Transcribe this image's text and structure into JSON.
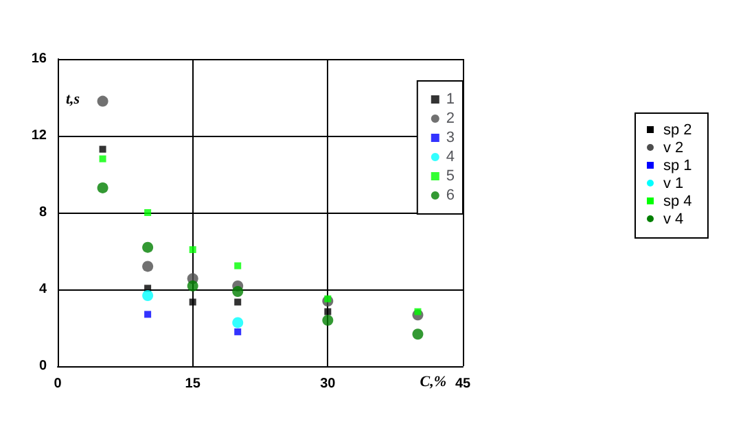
{
  "chart_data": {
    "type": "scatter",
    "xlabel": "C,%",
    "ylabel": "t,s",
    "x": [
      5,
      10,
      15,
      20,
      30,
      40
    ],
    "series": [
      {
        "name": "1",
        "color": "#000000",
        "marker": "square",
        "values": [
          11.3,
          4.06,
          3.34,
          3.34,
          2.84,
          null
        ]
      },
      {
        "name": "2",
        "color": "#4d4d4d",
        "marker": "circle",
        "values": [
          13.8,
          5.2,
          4.56,
          4.18,
          3.39,
          2.67
        ]
      },
      {
        "name": "3",
        "color": "#0000ff",
        "marker": "square",
        "values": [
          null,
          2.7,
          null,
          1.79,
          null,
          null
        ]
      },
      {
        "name": "4",
        "color": "#00ffff",
        "marker": "circle",
        "values": [
          null,
          3.68,
          null,
          2.27,
          null,
          null
        ]
      },
      {
        "name": "5",
        "color": "#00ff00",
        "marker": "square",
        "values": [
          10.8,
          8.0,
          6.07,
          5.23,
          3.51,
          2.84
        ]
      },
      {
        "name": "6",
        "color": "#007f00",
        "marker": "circle",
        "values": [
          9.29,
          6.19,
          4.18,
          3.89,
          2.39,
          1.67
        ]
      }
    ],
    "xlim": [
      0,
      45
    ],
    "xticks": [
      0,
      15,
      30,
      45
    ],
    "ylim": [
      0,
      16
    ],
    "yticks": [
      0,
      4,
      8,
      12,
      16
    ],
    "grid": true,
    "legend": "top right",
    "annotations": [
      "sp 2",
      "v 2",
      "sp 1",
      "v 1",
      "sp 4",
      "v 4"
    ]
  }
}
